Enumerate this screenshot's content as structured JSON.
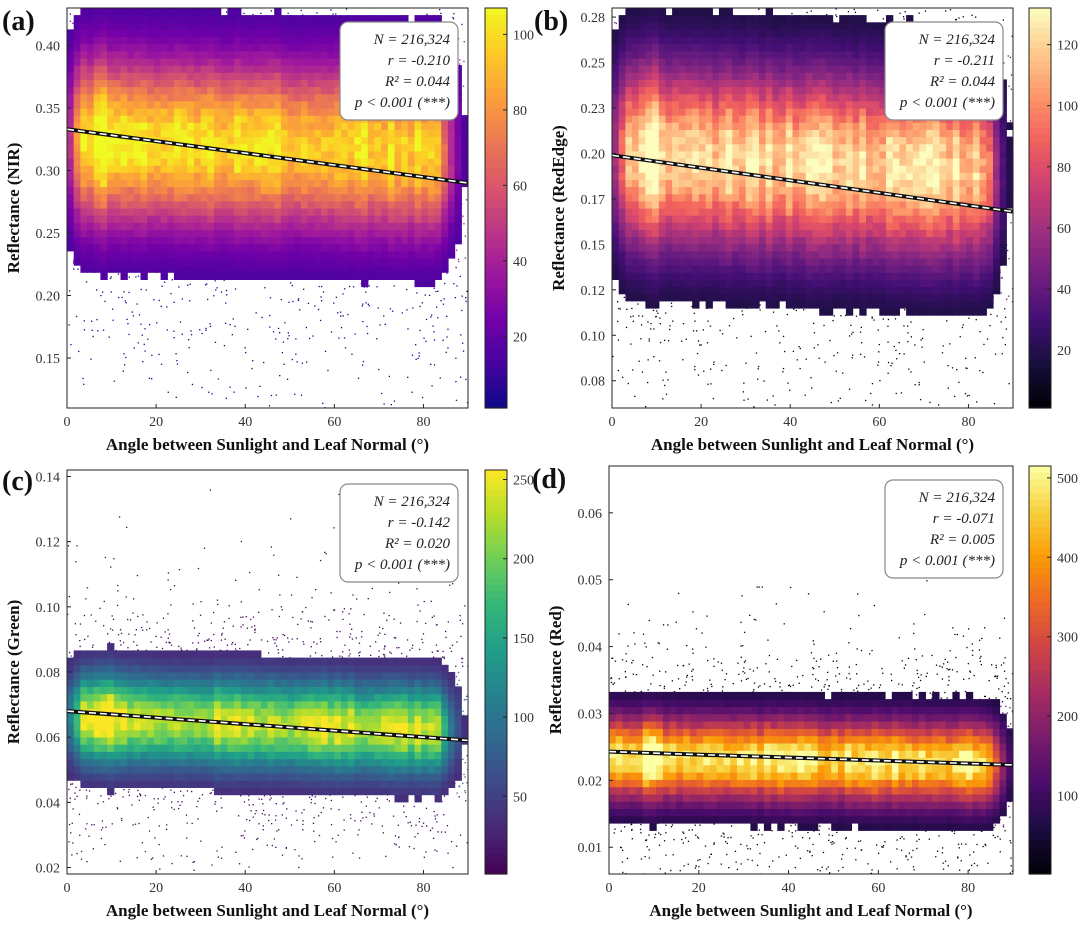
{
  "x_axis_label": "Angle between Sunlight and Leaf Normal (°)",
  "panels": [
    {
      "panel_label": "(a)",
      "stats": [
        "N = 216,324",
        "r = -0.210",
        "R² = 0.044",
        "p < 0.001 (***)"
      ],
      "colormap": "plasma",
      "colorbar_ticks": [
        "20",
        "40",
        "60",
        "80",
        "100"
      ],
      "colorbar_tick_values": [
        20,
        40,
        60,
        80,
        100
      ],
      "colorbar_range": [
        1,
        107
      ]
    },
    {
      "panel_label": "(b)",
      "stats": [
        "N = 216,324",
        "r = -0.211",
        "R² = 0.044",
        "p < 0.001 (***)"
      ],
      "colormap": "magma",
      "colorbar_ticks": [
        "20",
        "40",
        "60",
        "80",
        "100",
        "120"
      ],
      "colorbar_tick_values": [
        20,
        40,
        60,
        80,
        100,
        120
      ],
      "colorbar_range": [
        1,
        132
      ]
    },
    {
      "panel_label": "(c)",
      "stats": [
        "N = 216,324",
        "r = -0.142",
        "R² = 0.020",
        "p < 0.001 (***)"
      ],
      "colormap": "viridis",
      "colorbar_ticks": [
        "50",
        "100",
        "150",
        "200",
        "250"
      ],
      "colorbar_tick_values": [
        50,
        100,
        150,
        200,
        250
      ],
      "colorbar_range": [
        1,
        256
      ]
    },
    {
      "panel_label": "(d)",
      "stats": [
        "N = 216,324",
        "r = -0.071",
        "R² = 0.005",
        "p < 0.001 (***)"
      ],
      "colormap": "inferno",
      "colorbar_ticks": [
        "100",
        "200",
        "300",
        "400",
        "500"
      ],
      "colorbar_tick_values": [
        100,
        200,
        300,
        400,
        500
      ],
      "colorbar_range": [
        1,
        515
      ]
    }
  ],
  "chart_data": [
    {
      "type": "heatmap",
      "title": "(a)",
      "xlabel": "Angle between Sunlight and Leaf Normal (°)",
      "ylabel": "Reflectance (NIR)",
      "xlim": [
        0,
        90
      ],
      "ylim": [
        0.11,
        0.43
      ],
      "x_ticks": [
        0,
        20,
        40,
        60,
        80
      ],
      "y_ticks": [
        0.15,
        0.2,
        0.25,
        0.3,
        0.35,
        0.4
      ],
      "y_tick_labels": [
        "0.15",
        "0.20",
        "0.25",
        "0.30",
        "0.35",
        "0.40"
      ],
      "density_center": [
        0.325,
        0.315
      ],
      "density_spread": 0.045,
      "core_x_range": [
        4,
        82
      ],
      "peak_x": 8,
      "regression_line": {
        "x": [
          0,
          90
        ],
        "y": [
          0.333,
          0.29
        ]
      },
      "N": 216324,
      "r": -0.21,
      "R2": 0.044
    },
    {
      "type": "heatmap",
      "title": "(b)",
      "xlabel": "Angle between Sunlight and Leaf Normal (°)",
      "ylabel": "Reflectance (RedEdge)",
      "xlim": [
        0,
        90
      ],
      "ylim": [
        0.06,
        0.28
      ],
      "x_ticks": [
        0,
        20,
        40,
        60,
        80
      ],
      "y_ticks": [
        0.075,
        0.1,
        0.125,
        0.15,
        0.175,
        0.2,
        0.225,
        0.25,
        0.275
      ],
      "y_tick_labels": [
        "0.08",
        "0.10",
        "0.12",
        "0.15",
        "0.17",
        "0.20",
        "0.23",
        "0.25",
        "0.28"
      ],
      "density_center": [
        0.2,
        0.19
      ],
      "density_spread": 0.034,
      "core_x_range": [
        4,
        82
      ],
      "peak_x": 9,
      "regression_line": {
        "x": [
          0,
          90
        ],
        "y": [
          0.199,
          0.168
        ]
      },
      "N": 216324,
      "r": -0.211,
      "R2": 0.044
    },
    {
      "type": "heatmap",
      "title": "(c)",
      "xlabel": "Angle between Sunlight and Leaf Normal (°)",
      "ylabel": "Reflectance (Green)",
      "xlim": [
        0,
        90
      ],
      "ylim": [
        0.018,
        0.142
      ],
      "x_ticks": [
        0,
        20,
        40,
        60,
        80
      ],
      "y_ticks": [
        0.02,
        0.04,
        0.06,
        0.08,
        0.1,
        0.12,
        0.14
      ],
      "y_tick_labels": [
        "0.02",
        "0.04",
        "0.06",
        "0.08",
        "0.10",
        "0.12",
        "0.14"
      ],
      "density_center": [
        0.066,
        0.062
      ],
      "density_spread": 0.009,
      "core_x_range": [
        4,
        82
      ],
      "peak_x": 9,
      "regression_line": {
        "x": [
          0,
          90
        ],
        "y": [
          0.068,
          0.059
        ]
      },
      "N": 216324,
      "r": -0.142,
      "R2": 0.02
    },
    {
      "type": "heatmap",
      "title": "(d)",
      "xlabel": "Angle between Sunlight and Leaf Normal (°)",
      "ylabel": "Reflectance (Red)",
      "xlim": [
        0,
        90
      ],
      "ylim": [
        0.006,
        0.067
      ],
      "x_ticks": [
        0,
        20,
        40,
        60,
        80
      ],
      "y_ticks": [
        0.01,
        0.02,
        0.03,
        0.04,
        0.05,
        0.06
      ],
      "y_tick_labels": [
        "0.01",
        "0.02",
        "0.03",
        "0.04",
        "0.05",
        "0.06"
      ],
      "density_center": [
        0.0235,
        0.0225
      ],
      "density_spread": 0.0042,
      "core_x_range": [
        1,
        83
      ],
      "peak_x": 9,
      "regression_line": {
        "x": [
          0,
          90
        ],
        "y": [
          0.0243,
          0.0223
        ]
      },
      "N": 216324,
      "r": -0.071,
      "R2": 0.005
    }
  ]
}
